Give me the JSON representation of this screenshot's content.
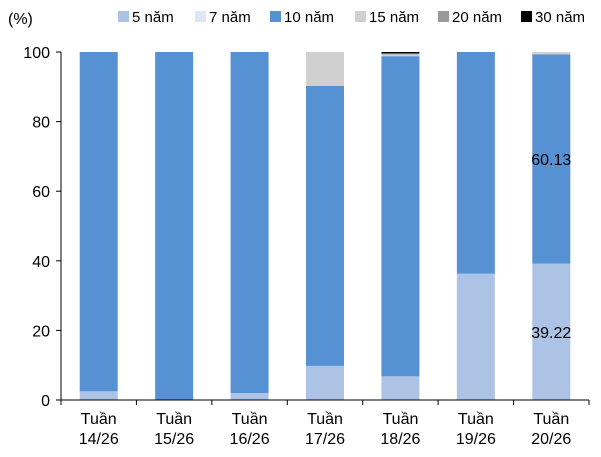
{
  "chart_data": {
    "type": "bar",
    "stacked": true,
    "unit_label": "(%)",
    "ylim": [
      0,
      100
    ],
    "yticks": [
      "0",
      "20",
      "40",
      "60",
      "80",
      "100"
    ],
    "grid": false,
    "legend_position": "top",
    "categories": [
      [
        "Tuần",
        "14/26"
      ],
      [
        "Tuần",
        "15/26"
      ],
      [
        "Tuần",
        "16/26"
      ],
      [
        "Tuần",
        "17/26"
      ],
      [
        "Tuần",
        "18/26"
      ],
      [
        "Tuần",
        "19/26"
      ],
      [
        "Tuần",
        "20/26"
      ]
    ],
    "series": [
      {
        "name": "5 năm",
        "color": "#adc3e6",
        "values": [
          2.5,
          0,
          2,
          9.8,
          6.8,
          36.3,
          39.22
        ]
      },
      {
        "name": "7 năm",
        "color": "#dde6f4",
        "values": [
          0,
          0,
          0,
          0,
          0,
          0,
          0
        ]
      },
      {
        "name": "10 năm",
        "color": "#5591d3",
        "values": [
          97.5,
          100,
          98,
          80.5,
          92,
          63.7,
          60.13
        ]
      },
      {
        "name": "15 năm",
        "color": "#d0d0d0",
        "values": [
          0,
          0,
          0,
          9.7,
          0.5,
          0,
          0.65
        ]
      },
      {
        "name": "20 năm",
        "color": "#999999",
        "values": [
          0,
          0,
          0,
          0,
          0.3,
          0,
          0
        ]
      },
      {
        "name": "30 năm",
        "color": "#000000",
        "values": [
          0,
          0,
          0,
          0,
          0.4,
          0,
          0
        ]
      }
    ],
    "data_labels": [
      {
        "category_index": 6,
        "series_index": 2,
        "text": "60.13"
      },
      {
        "category_index": 6,
        "series_index": 0,
        "text": "39.22"
      }
    ]
  }
}
